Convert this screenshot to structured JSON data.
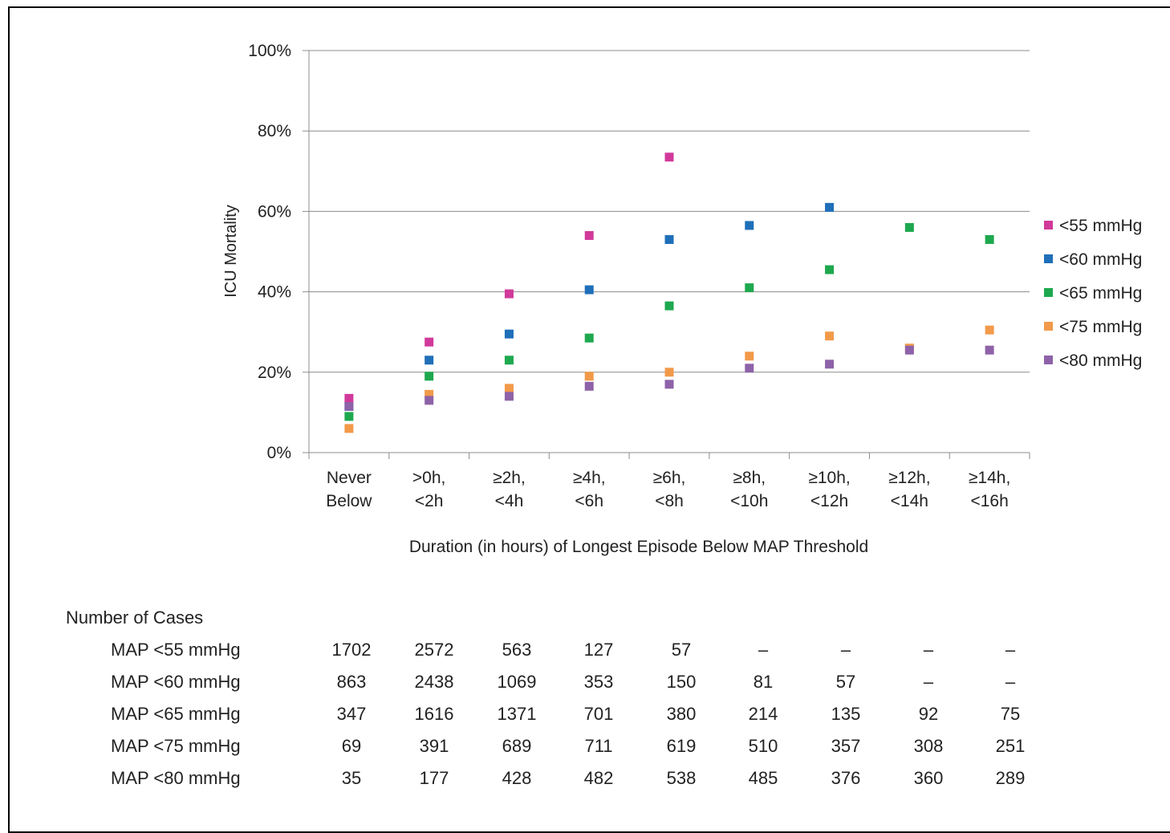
{
  "chart_data": {
    "type": "scatter",
    "categories": [
      "Never\nBelow",
      ">0h,\n<2h",
      "≥2h,\n<4h",
      "≥4h,\n<6h",
      "≥6h,\n<8h",
      "≥8h,\n<10h",
      "≥10h,\n<12h",
      "≥12h,\n<14h",
      "≥14h,\n<16h"
    ],
    "xlabel": "Duration (in hours) of Longest Episode Below MAP Threshold",
    "ylabel": "ICU Mortality",
    "ylim": [
      0,
      100
    ],
    "yticks": [
      "0%",
      "20%",
      "40%",
      "60%",
      "80%",
      "100%"
    ],
    "grid": true,
    "legend_position": "right",
    "series": [
      {
        "name": "<55 mmHg",
        "color": "#d1399a",
        "values": [
          13.5,
          27.5,
          39.5,
          54,
          73.5,
          null,
          null,
          null,
          null
        ]
      },
      {
        "name": "<60 mmHg",
        "color": "#1f6fb9",
        "values": [
          11.5,
          23,
          29.5,
          40.5,
          53,
          56.5,
          61,
          null,
          null
        ]
      },
      {
        "name": "<65 mmHg",
        "color": "#1ea84e",
        "values": [
          9,
          19,
          23,
          28.5,
          36.5,
          41,
          45.5,
          56,
          53
        ]
      },
      {
        "name": "<75 mmHg",
        "color": "#f29a4a",
        "values": [
          6,
          14.5,
          16,
          19,
          20,
          24,
          29,
          26,
          30.5
        ]
      },
      {
        "name": "<80 mmHg",
        "color": "#8e62a8",
        "values": [
          11.5,
          13,
          14,
          16.5,
          17,
          21,
          22,
          25.5,
          25.5
        ]
      }
    ]
  },
  "cases_table": {
    "title": "Number  of Cases",
    "rows": [
      {
        "label": "MAP <55 mmHg",
        "values": [
          "1702",
          "2572",
          "563",
          "127",
          "57",
          "–",
          "–",
          "–",
          "–"
        ]
      },
      {
        "label": "MAP <60 mmHg",
        "values": [
          "863",
          "2438",
          "1069",
          "353",
          "150",
          "81",
          "57",
          "–",
          "–"
        ]
      },
      {
        "label": "MAP <65 mmHg",
        "values": [
          "347",
          "1616",
          "1371",
          "701",
          "380",
          "214",
          "135",
          "92",
          "75"
        ]
      },
      {
        "label": "MAP <75 mmHg",
        "values": [
          "69",
          "391",
          "689",
          "711",
          "619",
          "510",
          "357",
          "308",
          "251"
        ]
      },
      {
        "label": "MAP <80 mmHg",
        "values": [
          "35",
          "177",
          "428",
          "482",
          "538",
          "485",
          "376",
          "360",
          "289"
        ]
      }
    ]
  }
}
